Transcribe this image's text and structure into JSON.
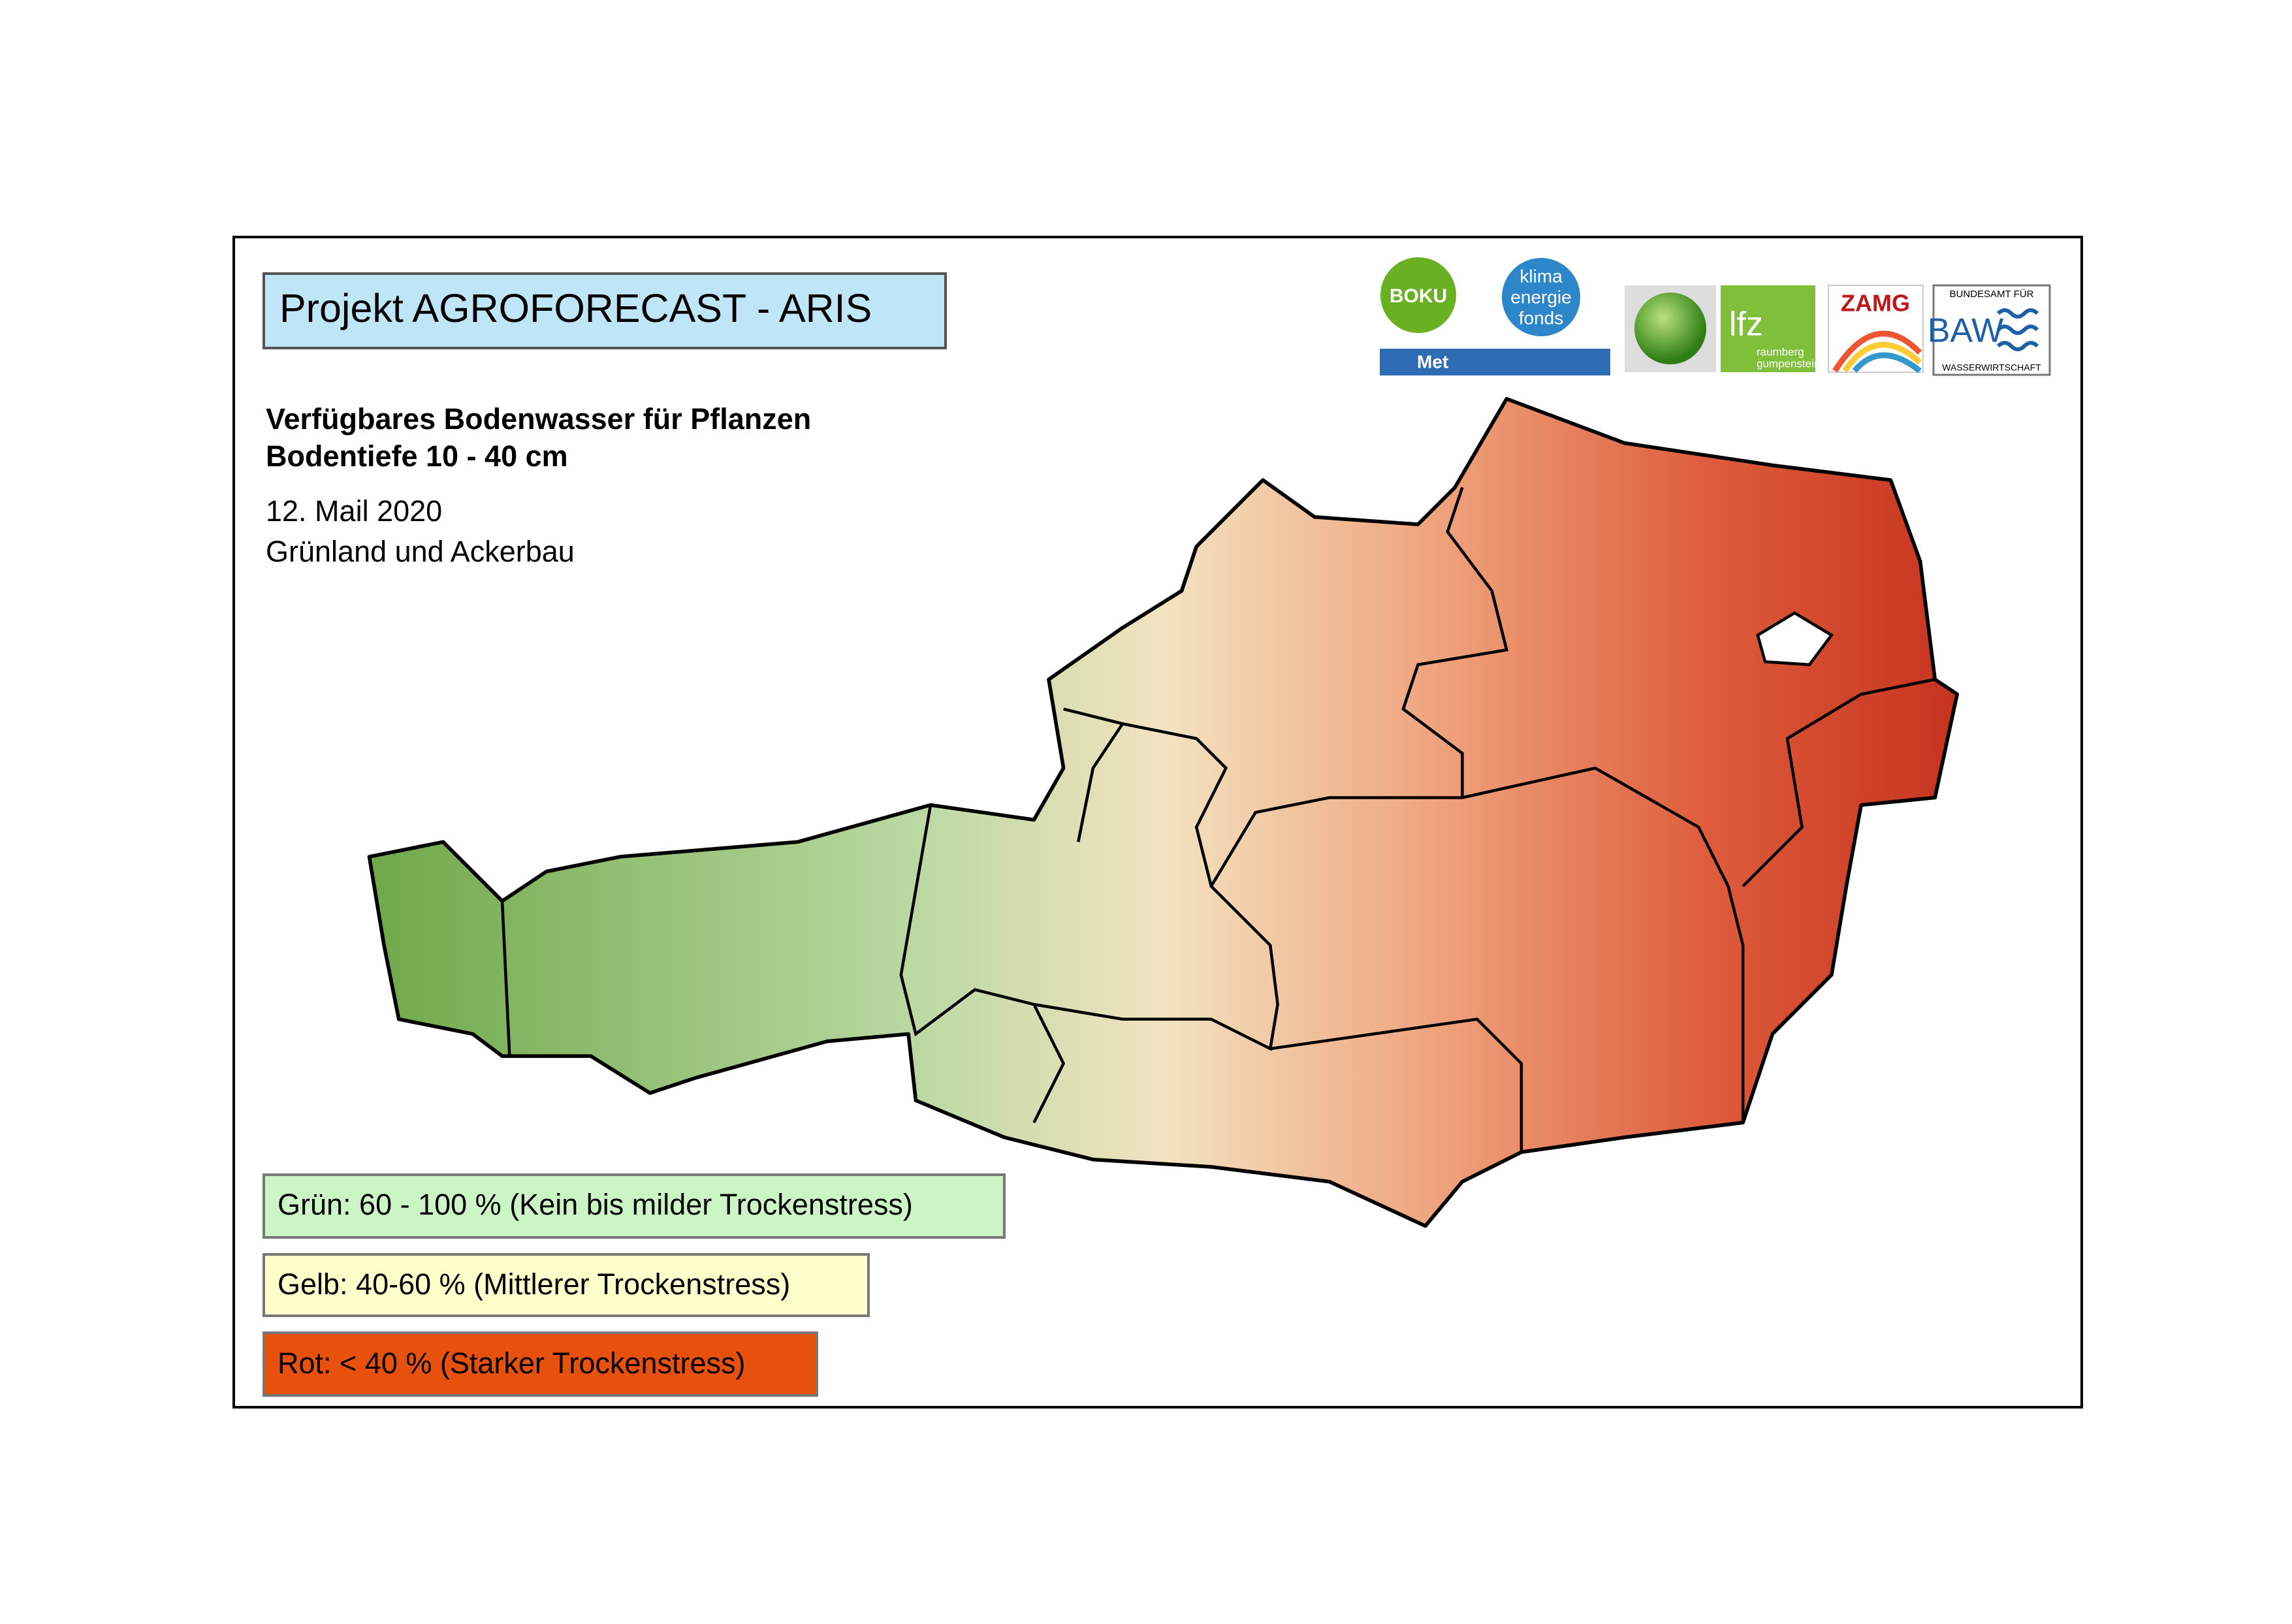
{
  "header": {
    "title": "Projekt AGROFORECAST - ARIS",
    "subtitle_lines": [
      "Verfügbares Bodenwasser für Pflanzen",
      "Bodentiefe 10 - 40 cm"
    ],
    "date": "12. Mail 2020",
    "land_use": "Grünland und Ackerbau"
  },
  "logos": {
    "boku": "BOKU",
    "met": "Met",
    "klima": [
      "klima",
      "energie",
      "fonds"
    ],
    "lfz": "lfz",
    "lfz_sub": [
      "raumberg",
      "gumpenstein"
    ],
    "zamg": "ZAMG",
    "baw_top": "BUNDESAMT FÜR",
    "baw": "BAW",
    "baw_bottom": "WASSERWIRTSCHAFT"
  },
  "legend": [
    {
      "label": "Grün: 60 - 100 % (Kein bis milder Trockenstress)",
      "color": "#ccf5c6"
    },
    {
      "label": "Gelb: 40-60 % (Mittlerer Trockenstress)",
      "color": "#ffffcc"
    },
    {
      "label": "Rot: < 40 % (Starker Trockenstress)",
      "color": "#e8500e"
    }
  ]
}
